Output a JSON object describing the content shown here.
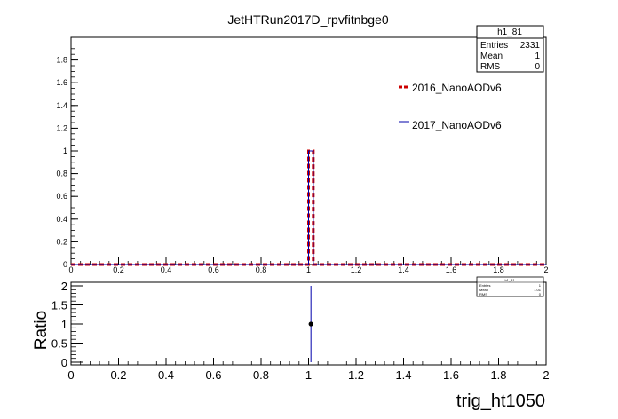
{
  "title": "JetHTRun2017D_rpvfitnbge0",
  "chart_data": [
    {
      "type": "histogram",
      "panel": "main",
      "xlim": [
        0,
        2
      ],
      "ylim": [
        0,
        2
      ],
      "x_ticks": [
        "0",
        "0.2",
        "0.4",
        "0.6",
        "0.8",
        "1",
        "1.2",
        "1.4",
        "1.6",
        "1.8",
        "2"
      ],
      "y_ticks": [
        "0",
        "0.2",
        "0.4",
        "0.6",
        "0.8",
        "1",
        "1.2",
        "1.4",
        "1.6",
        "1.8"
      ],
      "bin_width": 0.02,
      "series": [
        {
          "name": "2016_NanoAODv6",
          "color": "#cc0000",
          "style": "dashed",
          "bins": [
            {
              "x0": 1.0,
              "x1": 1.02,
              "y": 1
            }
          ],
          "baseline": 0
        },
        {
          "name": "2017_NanoAODv6",
          "color": "#0000aa",
          "style": "solid",
          "bins": [
            {
              "x0": 1.0,
              "x1": 1.02,
              "y": 1
            }
          ],
          "baseline": 0
        }
      ],
      "stats_box": {
        "name": "h1_81",
        "rows": [
          {
            "label": "Entries",
            "value": "2331"
          },
          {
            "label": "Mean",
            "value": "1"
          },
          {
            "label": "RMS",
            "value": "0"
          }
        ]
      }
    },
    {
      "type": "scatter",
      "panel": "ratio",
      "ylabel": "Ratio",
      "xlabel": "trig_ht1050",
      "xlim": [
        0,
        2
      ],
      "ylim": [
        0,
        2
      ],
      "x_ticks": [
        "0",
        "0.2",
        "0.4",
        "0.6",
        "0.8",
        "1",
        "1.2",
        "1.4",
        "1.6",
        "1.8",
        "2"
      ],
      "y_ticks": [
        "0",
        "0.5",
        "1",
        "1.5",
        "2"
      ],
      "points": [
        {
          "x": 1.01,
          "y": 1,
          "err_low": 1,
          "err_high": 1
        }
      ],
      "stats_box": {
        "name": "h1_81",
        "rows": [
          {
            "label": "Entries",
            "value": "1"
          },
          {
            "label": "Mean",
            "value": "1.01"
          },
          {
            "label": "RMS",
            "value": "0"
          }
        ]
      }
    }
  ]
}
